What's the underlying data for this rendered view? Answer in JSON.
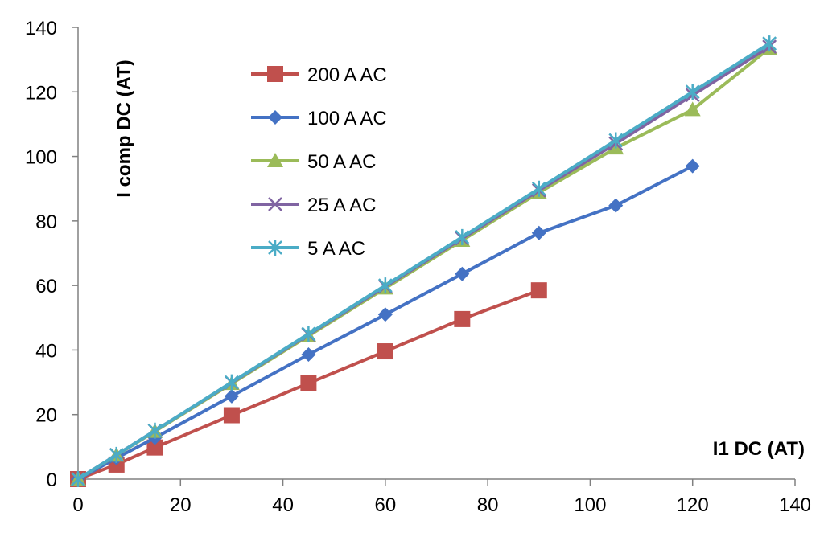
{
  "chart_data": {
    "type": "line",
    "title": "",
    "xlabel": "I1 DC (AT)",
    "ylabel": "I comp DC (AT)",
    "xlim": [
      0,
      140
    ],
    "ylim": [
      0,
      140
    ],
    "xticks": [
      0,
      20,
      40,
      60,
      80,
      100,
      120,
      140
    ],
    "yticks": [
      0,
      20,
      40,
      60,
      80,
      100,
      120,
      140
    ],
    "xtick_labels": [
      "0",
      "20",
      "40",
      "60",
      "80",
      "100",
      "120",
      "140"
    ],
    "ytick_labels": [
      "0",
      "20",
      "40",
      "60",
      "80",
      "100",
      "120",
      "140"
    ],
    "grid": false,
    "legend_position": "top-left",
    "series": [
      {
        "name": "200 A AC",
        "color": "#C0504D",
        "marker": "square",
        "points": [
          [
            0,
            0
          ],
          [
            7.5,
            4.5
          ],
          [
            15,
            9.8
          ],
          [
            30,
            19.8
          ],
          [
            45,
            29.7
          ],
          [
            60,
            39.6
          ],
          [
            75,
            49.6
          ],
          [
            90,
            58.5
          ]
        ]
      },
      {
        "name": "100 A AC",
        "color": "#4472C4",
        "marker": "diamond",
        "points": [
          [
            0,
            0
          ],
          [
            7.5,
            6.5
          ],
          [
            15,
            12.8
          ],
          [
            30,
            25.7
          ],
          [
            45,
            38.6
          ],
          [
            60,
            51
          ],
          [
            75,
            63.6
          ],
          [
            90,
            76.3
          ],
          [
            105,
            84.8
          ],
          [
            120,
            97
          ]
        ]
      },
      {
        "name": "50 A AC",
        "color": "#9BBB59",
        "marker": "triangle",
        "points": [
          [
            0,
            0
          ],
          [
            7.5,
            7.4
          ],
          [
            15,
            14.8
          ],
          [
            30,
            29.6
          ],
          [
            45,
            44.4
          ],
          [
            60,
            59.2
          ],
          [
            75,
            74
          ],
          [
            90,
            88.8
          ],
          [
            105,
            102.6
          ],
          [
            120,
            114.5
          ],
          [
            135,
            133.5
          ]
        ]
      },
      {
        "name": "25 A AC",
        "color": "#8064A2",
        "marker": "x",
        "points": [
          [
            0,
            0
          ],
          [
            7.5,
            7.5
          ],
          [
            15,
            15
          ],
          [
            30,
            29.9
          ],
          [
            45,
            44.8
          ],
          [
            60,
            59.7
          ],
          [
            75,
            74.6
          ],
          [
            90,
            89.5
          ],
          [
            105,
            104
          ],
          [
            120,
            119
          ],
          [
            135,
            134
          ]
        ]
      },
      {
        "name": "5 A AC",
        "color": "#4BACC6",
        "marker": "star",
        "points": [
          [
            0,
            0
          ],
          [
            7.5,
            7.5
          ],
          [
            15,
            15
          ],
          [
            30,
            30
          ],
          [
            45,
            45
          ],
          [
            60,
            60
          ],
          [
            75,
            75
          ],
          [
            90,
            90
          ],
          [
            105,
            105
          ],
          [
            120,
            120
          ],
          [
            135,
            135
          ]
        ]
      }
    ]
  }
}
